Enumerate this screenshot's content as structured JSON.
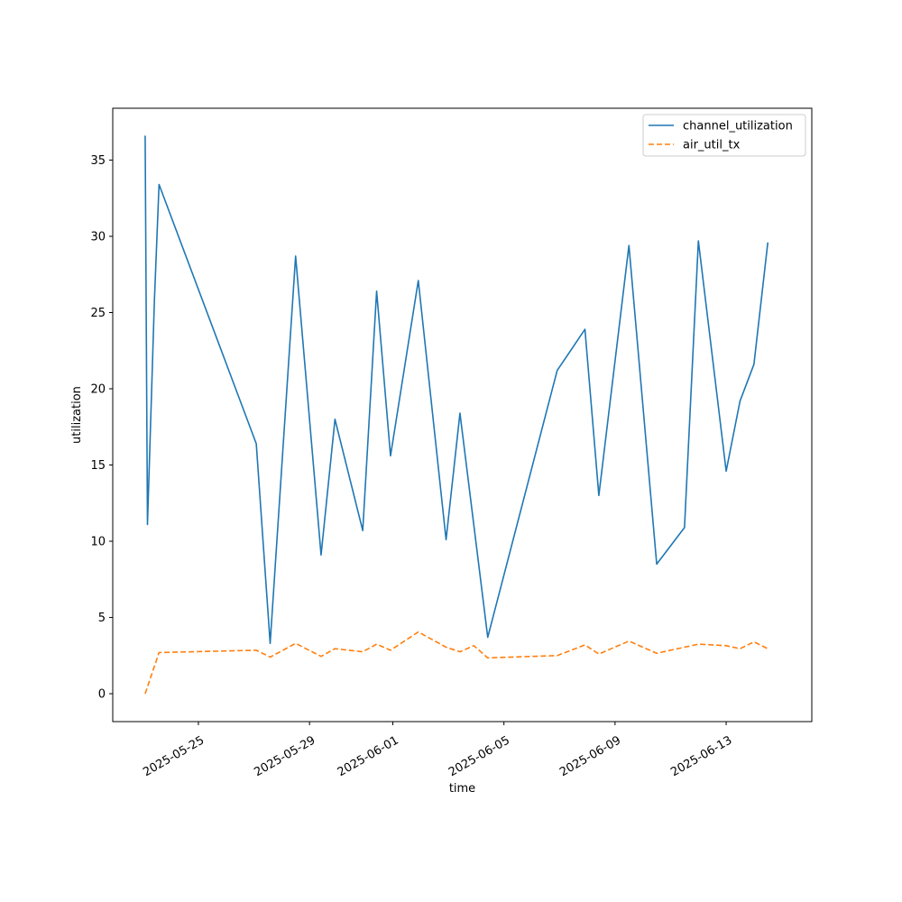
{
  "chart_data": {
    "type": "line",
    "title": "",
    "xlabel": "time",
    "ylabel": "utilization",
    "x_tick_labels": [
      "2025-05-25",
      "2025-05-29",
      "2025-06-01",
      "2025-06-05",
      "2025-06-09",
      "2025-06-13"
    ],
    "x_tick_dates": [
      "2025-05-25",
      "2025-05-29",
      "2025-06-01",
      "2025-06-05",
      "2025-06-09",
      "2025-06-13"
    ],
    "y_ticks": [
      0,
      5,
      10,
      15,
      20,
      25,
      30,
      35
    ],
    "xlim": [
      "2025-05-21 22:00",
      "2025-06-16 02:00"
    ],
    "ylim": [
      -1.83,
      38.4
    ],
    "grid": false,
    "legend_position": "top-right",
    "series": [
      {
        "name": "channel_utilization",
        "color": "#1f77b4",
        "style": "solid",
        "points": [
          [
            "2025-05-23 02:00",
            36.6
          ],
          [
            "2025-05-23 04:00",
            11.1
          ],
          [
            "2025-05-23 10:00",
            25.8
          ],
          [
            "2025-05-23 14:00",
            33.4
          ],
          [
            "2025-05-27 02:00",
            16.4
          ],
          [
            "2025-05-27 14:00",
            3.3
          ],
          [
            "2025-05-28 12:00",
            28.7
          ],
          [
            "2025-05-29 10:00",
            9.1
          ],
          [
            "2025-05-29 22:00",
            18.0
          ],
          [
            "2025-05-30 22:00",
            10.7
          ],
          [
            "2025-05-31 10:00",
            26.4
          ],
          [
            "2025-05-31 22:00",
            15.6
          ],
          [
            "2025-06-01 22:00",
            27.1
          ],
          [
            "2025-06-02 22:00",
            10.1
          ],
          [
            "2025-06-03 10:00",
            18.4
          ],
          [
            "2025-06-04 10:00",
            3.7
          ],
          [
            "2025-06-06 22:00",
            21.2
          ],
          [
            "2025-06-07 22:00",
            23.9
          ],
          [
            "2025-06-08 10:00",
            13.0
          ],
          [
            "2025-06-09 12:00",
            29.4
          ],
          [
            "2025-06-10 12:00",
            8.5
          ],
          [
            "2025-06-11 12:00",
            10.9
          ],
          [
            "2025-06-12 00:00",
            29.7
          ],
          [
            "2025-06-13 00:00",
            14.6
          ],
          [
            "2025-06-13 12:00",
            19.2
          ],
          [
            "2025-06-14 00:00",
            21.6
          ],
          [
            "2025-06-14 12:00",
            29.6
          ]
        ]
      },
      {
        "name": "air_util_tx",
        "color": "#ff7f0e",
        "style": "dashed",
        "points": [
          [
            "2025-05-23 02:00",
            0.0
          ],
          [
            "2025-05-23 14:00",
            2.7
          ],
          [
            "2025-05-27 02:00",
            2.85
          ],
          [
            "2025-05-27 14:00",
            2.4
          ],
          [
            "2025-05-28 12:00",
            3.3
          ],
          [
            "2025-05-29 10:00",
            2.45
          ],
          [
            "2025-05-29 22:00",
            2.95
          ],
          [
            "2025-05-30 22:00",
            2.75
          ],
          [
            "2025-05-31 10:00",
            3.25
          ],
          [
            "2025-05-31 22:00",
            2.85
          ],
          [
            "2025-06-01 22:00",
            4.05
          ],
          [
            "2025-06-02 22:00",
            3.05
          ],
          [
            "2025-06-03 10:00",
            2.75
          ],
          [
            "2025-06-03 22:00",
            3.15
          ],
          [
            "2025-06-04 10:00",
            2.35
          ],
          [
            "2025-06-06 22:00",
            2.5
          ],
          [
            "2025-06-07 22:00",
            3.2
          ],
          [
            "2025-06-08 10:00",
            2.6
          ],
          [
            "2025-06-09 12:00",
            3.45
          ],
          [
            "2025-06-10 12:00",
            2.65
          ],
          [
            "2025-06-12 00:00",
            3.25
          ],
          [
            "2025-06-13 00:00",
            3.15
          ],
          [
            "2025-06-13 12:00",
            2.95
          ],
          [
            "2025-06-14 00:00",
            3.4
          ],
          [
            "2025-06-14 12:00",
            2.95
          ]
        ]
      }
    ]
  }
}
